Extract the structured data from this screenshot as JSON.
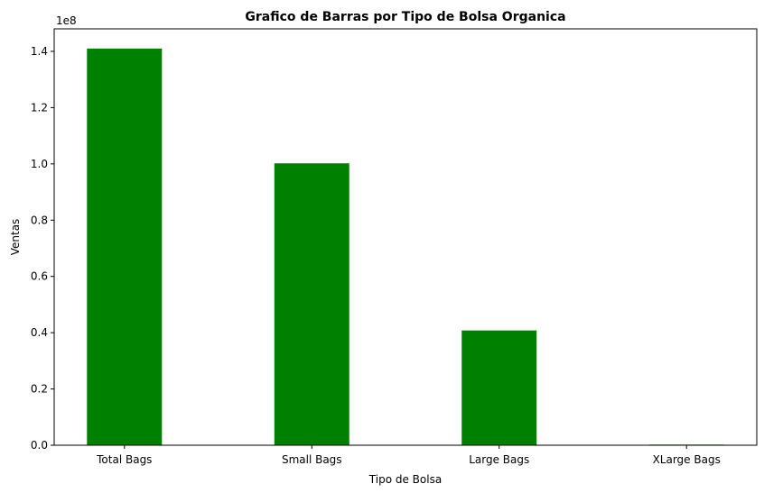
{
  "chart_data": {
    "type": "bar",
    "title": "Grafico de Barras por Tipo de Bolsa Organica",
    "xlabel": "Tipo de Bolsa",
    "ylabel": "Ventas",
    "y_offset_label": "1e8",
    "categories": [
      "Total Bags",
      "Small Bags",
      "Large Bags",
      "XLarge Bags"
    ],
    "values": [
      141000000,
      100200000,
      40800000,
      220000
    ],
    "ylim": [
      0,
      148000000
    ],
    "yticks": [
      0,
      20000000,
      40000000,
      60000000,
      80000000,
      100000000,
      120000000,
      140000000
    ],
    "ytick_labels": [
      "0.0",
      "0.2",
      "0.4",
      "0.6",
      "0.8",
      "1.0",
      "1.2",
      "1.4"
    ],
    "bar_color": "#008000",
    "grid": false,
    "legend": "none"
  }
}
